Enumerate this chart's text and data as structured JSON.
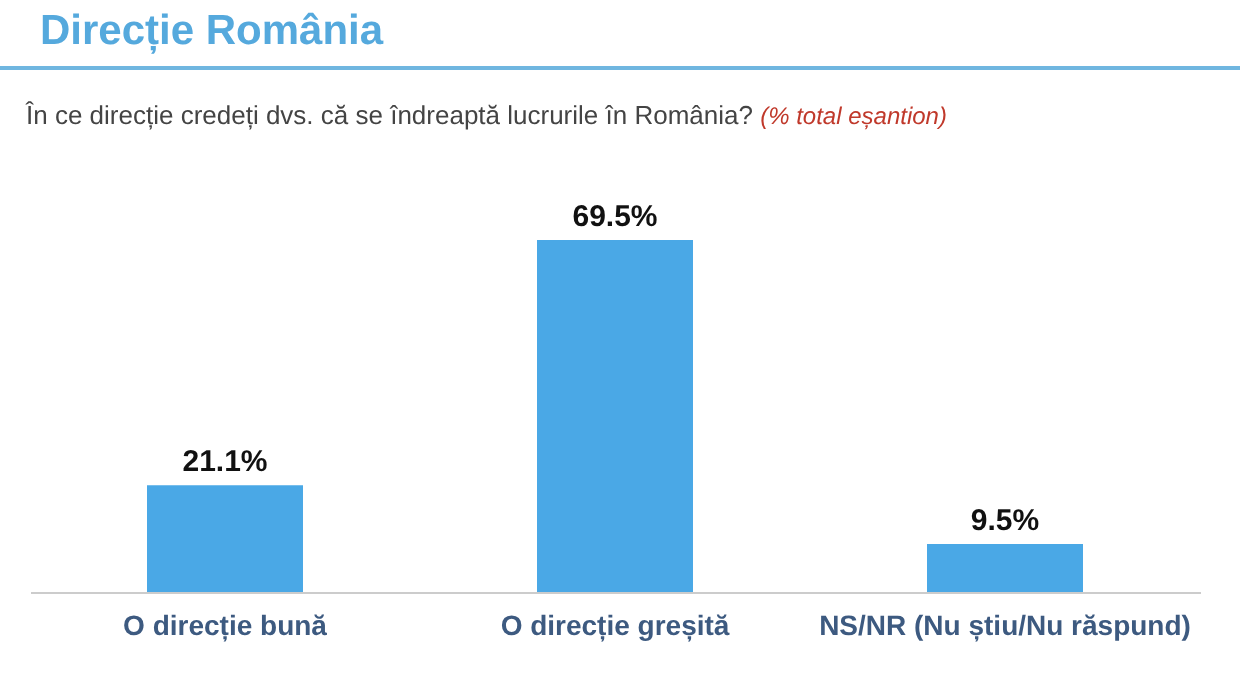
{
  "chart_data": {
    "type": "bar",
    "title": "Direcție România",
    "subtitle": "În ce direcție credeți dvs. că se îndreaptă lucrurile în România?",
    "annotations": [
      "(% total eșantion)"
    ],
    "categories": [
      "O direcție bună",
      "O direcție greșită",
      "NS/NR (Nu știu/Nu răspund)"
    ],
    "values": [
      21.1,
      69.5,
      9.5
    ],
    "value_labels": [
      "21.1%",
      "69.5%",
      "9.5%"
    ],
    "color": "#4aa8e6"
  }
}
